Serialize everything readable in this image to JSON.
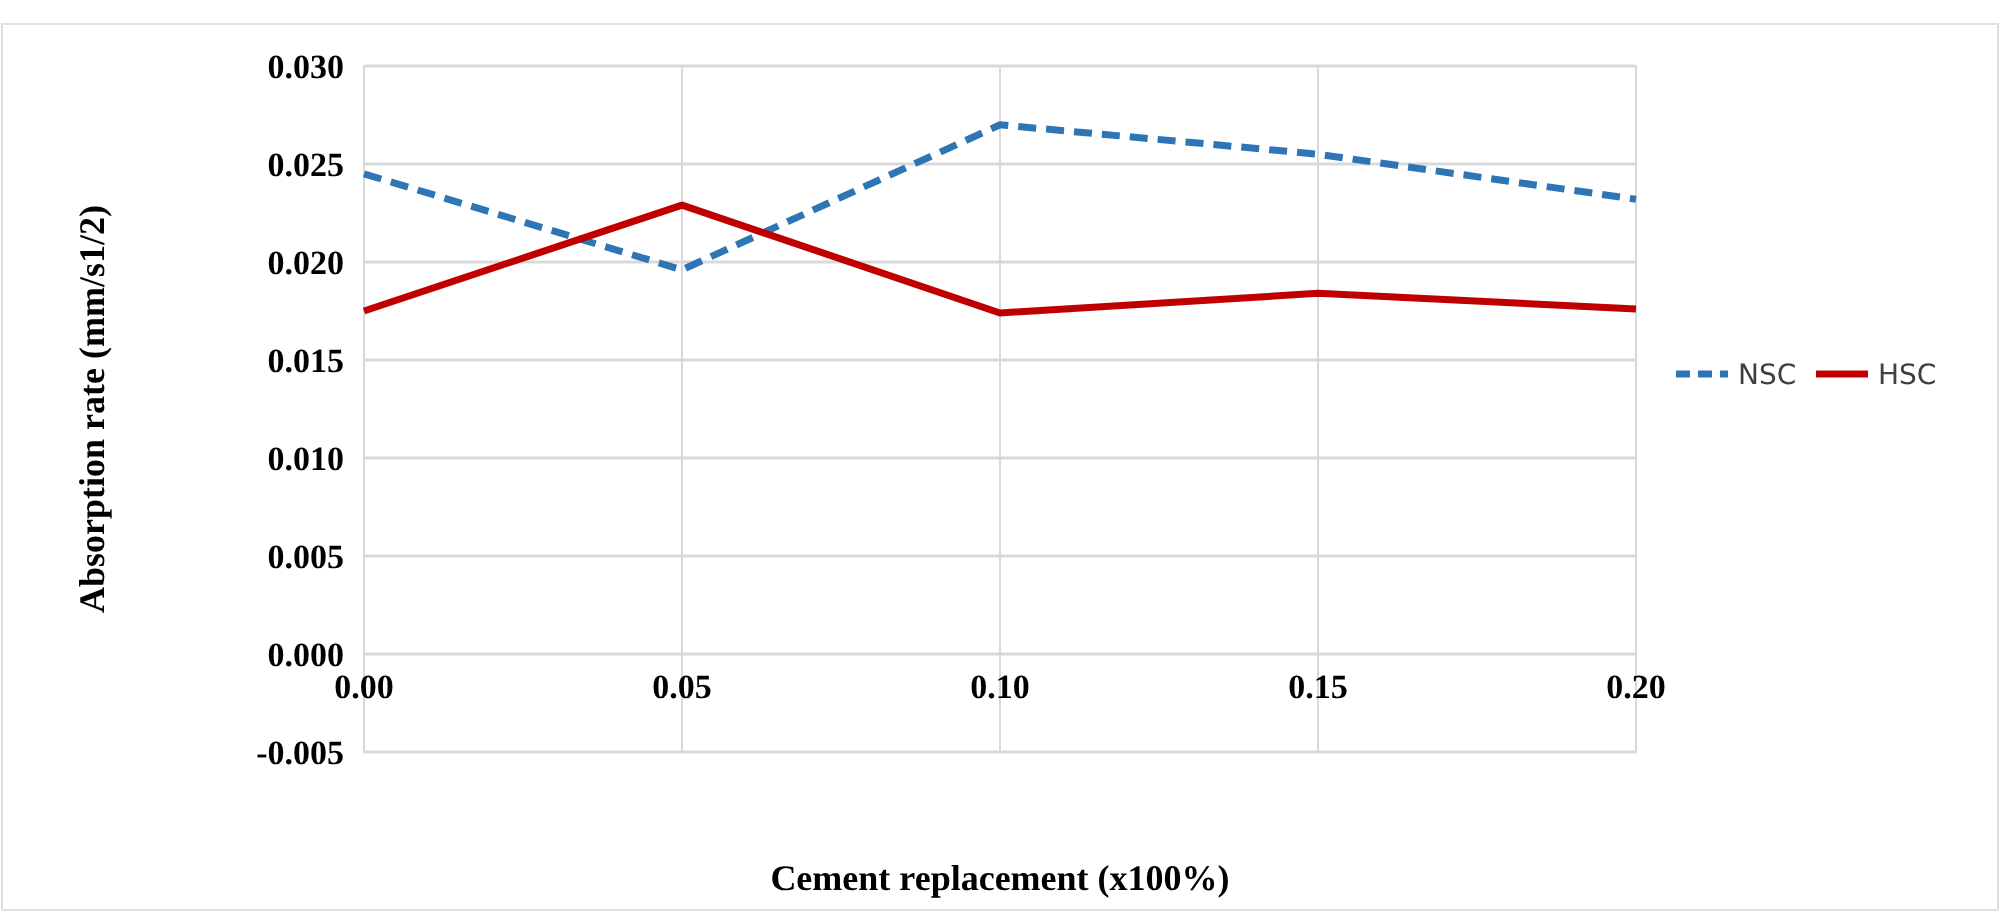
{
  "chart_data": {
    "type": "line",
    "xlabel": "Cement replacement (x100%)",
    "ylabel": "Absorption rate  (mm/s1/2)",
    "x": [
      0,
      0.05,
      0.1,
      0.15,
      0.2
    ],
    "xlim": [
      0,
      0.2
    ],
    "xticks": [
      {
        "value": 0,
        "label": "0.00"
      },
      {
        "value": 0.05,
        "label": "0.05"
      },
      {
        "value": 0.1,
        "label": "0.10"
      },
      {
        "value": 0.15,
        "label": "0.15"
      },
      {
        "value": 0.2,
        "label": "0.20"
      }
    ],
    "ylim": [
      -0.005,
      0.03
    ],
    "yticks": [
      {
        "value": -0.005,
        "label": "-0.005"
      },
      {
        "value": 0,
        "label": "0.000"
      },
      {
        "value": 0.005,
        "label": "0.005"
      },
      {
        "value": 0.01,
        "label": "0.010"
      },
      {
        "value": 0.015,
        "label": "0.015"
      },
      {
        "value": 0.02,
        "label": "0.020"
      },
      {
        "value": 0.025,
        "label": "0.025"
      },
      {
        "value": 0.03,
        "label": "0.030"
      }
    ],
    "grid": true,
    "legend": "right",
    "series": [
      {
        "name": "NSC",
        "color": "#2e75b6",
        "line_style": "dashed",
        "values": [
          0.0245,
          0.0196,
          0.027,
          0.0255,
          0.0232
        ]
      },
      {
        "name": "HSC",
        "color": "#c00000",
        "line_style": "solid",
        "values": [
          0.0175,
          0.0229,
          0.0174,
          0.0184,
          0.0176
        ]
      }
    ]
  }
}
